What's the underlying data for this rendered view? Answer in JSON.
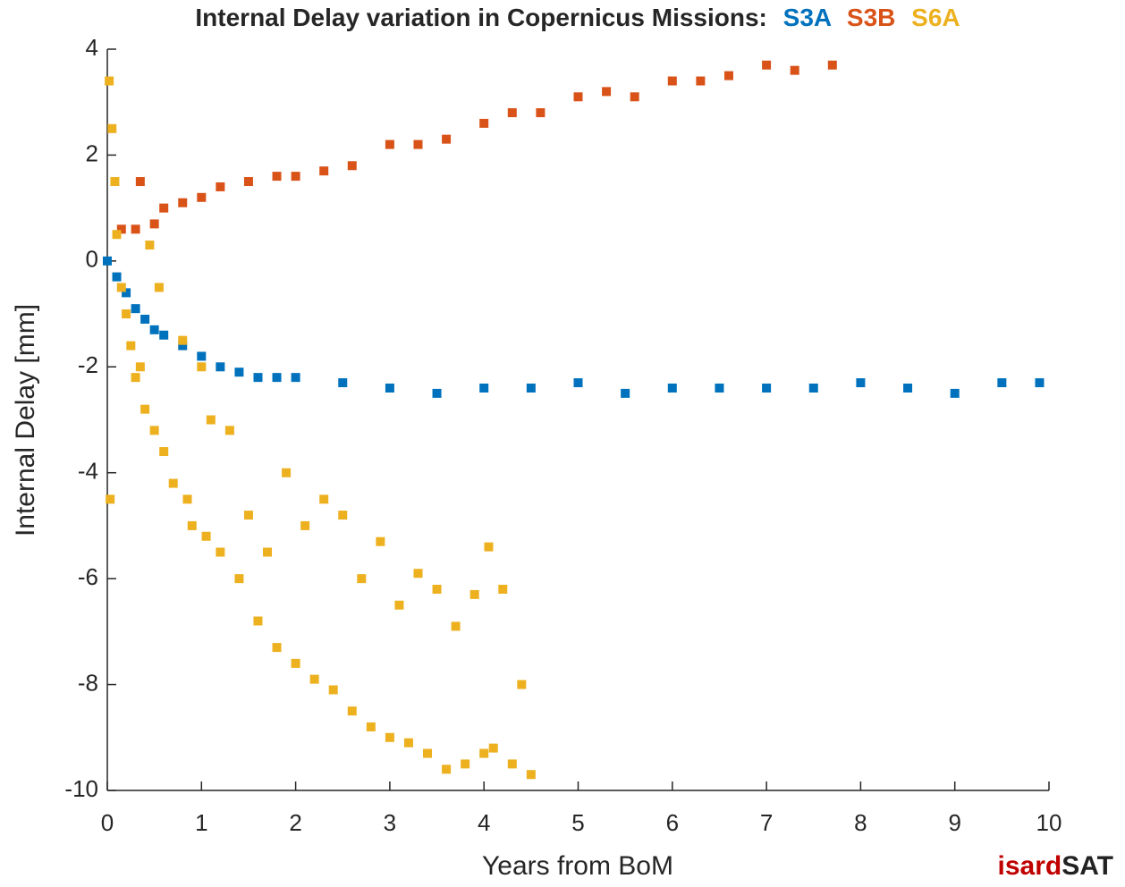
{
  "chart_data": {
    "type": "scatter",
    "title": "Internal Delay variation in Copernicus Missions:",
    "xlabel": "Years from BoM",
    "ylabel": "Internal Delay [mm]",
    "xlim": [
      0,
      10
    ],
    "xticks": [
      0,
      1,
      2,
      3,
      4,
      5,
      6,
      7,
      8,
      9,
      10
    ],
    "ylim": [
      -10,
      4
    ],
    "yticks": [
      4,
      2,
      0,
      -2,
      -4,
      -6,
      -8,
      -10
    ],
    "series": [
      {
        "name": "S3A",
        "color": "#0072bd",
        "x": [
          0,
          0.1,
          0.2,
          0.3,
          0.4,
          0.5,
          0.6,
          0.8,
          1.0,
          1.2,
          1.4,
          1.6,
          1.8,
          2.0,
          2.5,
          3.0,
          3.5,
          4.0,
          4.5,
          5.0,
          5.5,
          6.0,
          6.5,
          7.0,
          7.5,
          8.0,
          8.5,
          9.0,
          9.5,
          9.9
        ],
        "values": [
          0,
          -0.3,
          -0.6,
          -0.9,
          -1.1,
          -1.3,
          -1.4,
          -1.6,
          -1.8,
          -2.0,
          -2.1,
          -2.2,
          -2.2,
          -2.2,
          -2.3,
          -2.4,
          -2.5,
          -2.4,
          -2.4,
          -2.3,
          -2.5,
          -2.4,
          -2.4,
          -2.4,
          -2.4,
          -2.3,
          -2.4,
          -2.5,
          -2.3,
          -2.3
        ]
      },
      {
        "name": "S3B",
        "color": "#d95319",
        "x": [
          0.15,
          0.3,
          0.35,
          0.5,
          0.6,
          0.8,
          1.0,
          1.2,
          1.5,
          1.8,
          2.0,
          2.3,
          2.6,
          3.0,
          3.3,
          3.6,
          4.0,
          4.3,
          4.6,
          5.0,
          5.3,
          5.6,
          6.0,
          6.3,
          6.6,
          7.0,
          7.3,
          7.7
        ],
        "values": [
          0.6,
          0.6,
          1.5,
          0.7,
          1.0,
          1.1,
          1.2,
          1.4,
          1.5,
          1.6,
          1.6,
          1.7,
          1.8,
          2.2,
          2.2,
          2.3,
          2.6,
          2.8,
          2.8,
          3.1,
          3.2,
          3.1,
          3.4,
          3.4,
          3.5,
          3.7,
          3.6,
          3.7
        ]
      },
      {
        "name": "S6A",
        "color": "#edb120",
        "x": [
          0.02,
          0.05,
          0.08,
          0.03,
          0.1,
          0.15,
          0.2,
          0.25,
          0.3,
          0.35,
          0.4,
          0.45,
          0.5,
          0.55,
          0.6,
          0.7,
          0.8,
          0.85,
          0.9,
          1.0,
          1.05,
          1.1,
          1.2,
          1.3,
          1.4,
          1.5,
          1.6,
          1.7,
          1.8,
          1.9,
          2.0,
          2.1,
          2.2,
          2.3,
          2.4,
          2.5,
          2.6,
          2.7,
          2.8,
          2.9,
          3.0,
          3.1,
          3.2,
          3.3,
          3.4,
          3.5,
          3.6,
          3.7,
          3.8,
          3.9,
          4.0,
          4.05,
          4.1,
          4.2,
          4.3,
          4.4,
          4.5
        ],
        "values": [
          3.4,
          2.5,
          1.5,
          -4.5,
          0.5,
          -0.5,
          -1.0,
          -1.6,
          -2.2,
          -2.0,
          -2.8,
          0.3,
          -3.2,
          -0.5,
          -3.6,
          -4.2,
          -1.5,
          -4.5,
          -5.0,
          -2.0,
          -5.2,
          -3.0,
          -5.5,
          -3.2,
          -6.0,
          -4.8,
          -6.8,
          -5.5,
          -7.3,
          -4.0,
          -7.6,
          -5.0,
          -7.9,
          -4.5,
          -8.1,
          -4.8,
          -8.5,
          -6.0,
          -8.8,
          -5.3,
          -9.0,
          -6.5,
          -9.1,
          -5.9,
          -9.3,
          -6.2,
          -9.6,
          -6.9,
          -9.5,
          -6.3,
          -9.3,
          -5.4,
          -9.2,
          -6.2,
          -9.5,
          -8.0,
          -9.7
        ]
      }
    ]
  },
  "logo": {
    "red": "isard",
    "black": "SAT"
  }
}
